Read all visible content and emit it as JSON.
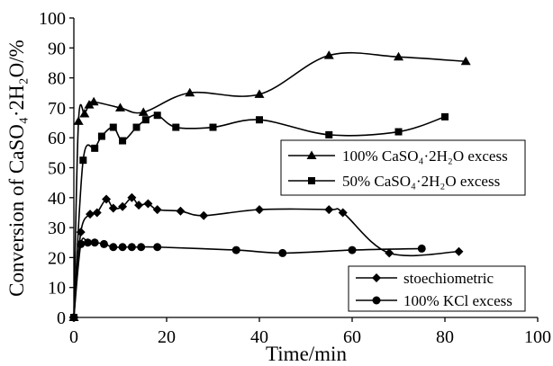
{
  "chart_data": {
    "type": "line",
    "xlabel": "Time/min",
    "ylabel": "Conversion of CaSO₄·2H₂O/%",
    "xlim": [
      0,
      100
    ],
    "ylim": [
      0,
      100
    ],
    "xticks": [
      0,
      20,
      40,
      60,
      80,
      100
    ],
    "yticks": [
      0,
      10,
      20,
      30,
      40,
      50,
      60,
      70,
      80,
      90,
      100
    ],
    "grid": false,
    "legend_placement": [
      "center-right",
      "lower-right"
    ],
    "series": [
      {
        "name": "100% CaSO₄·2H₂O excess",
        "marker": "triangle",
        "color": "#000000",
        "smooth": true,
        "x": [
          0,
          1,
          2.3,
          3.3,
          4.3,
          10,
          15,
          25,
          40,
          55,
          70,
          84.5
        ],
        "y": [
          0,
          65.5,
          68,
          71,
          72,
          70,
          68.5,
          75,
          74.5,
          87.5,
          87,
          85.5
        ]
      },
      {
        "name": "50% CaSO₄·2H₂O excess",
        "marker": "square",
        "color": "#000000",
        "smooth": true,
        "x": [
          0,
          2,
          4.5,
          6,
          8.5,
          10.5,
          13.5,
          15.5,
          18,
          22,
          30,
          40,
          55,
          70,
          80
        ],
        "y": [
          0,
          52.5,
          56.5,
          60.5,
          63.5,
          59,
          63.5,
          66,
          67.5,
          63.5,
          63.5,
          66,
          61,
          62,
          67
        ]
      },
      {
        "name": "stoechiometric",
        "marker": "diamond",
        "color": "#000000",
        "smooth": true,
        "x": [
          0,
          1.5,
          3.5,
          5,
          7,
          8.5,
          10.5,
          12.5,
          14,
          16,
          18,
          23,
          28,
          40,
          55,
          58,
          68,
          83
        ],
        "y": [
          0,
          28.5,
          34.5,
          35,
          39.5,
          36.5,
          37,
          40,
          37.5,
          38,
          36,
          35.5,
          34,
          36,
          36,
          35,
          21.5,
          22
        ]
      },
      {
        "name": "100% KCl excess",
        "marker": "circle",
        "color": "#000000",
        "smooth": true,
        "x": [
          0,
          1.5,
          3,
          4.5,
          6.5,
          8.5,
          10.5,
          12.5,
          14.5,
          18,
          35,
          45,
          60,
          75
        ],
        "y": [
          0,
          24.5,
          25,
          25,
          24.5,
          23.5,
          23.5,
          23.5,
          23.5,
          23.5,
          22.5,
          21.5,
          22.5,
          23
        ]
      }
    ]
  }
}
